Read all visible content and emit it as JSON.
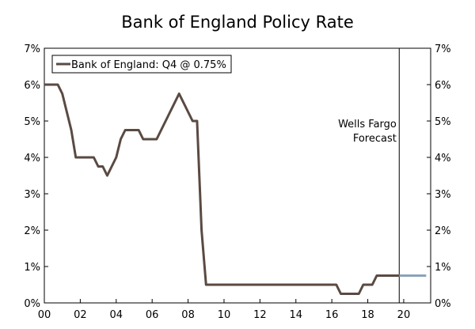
{
  "chart_data": {
    "type": "line",
    "title": "Bank of England Policy Rate",
    "xlabel": "",
    "ylabel": "",
    "xlim": [
      2000,
      2021.5
    ],
    "ylim": [
      0,
      7
    ],
    "x_ticks": [
      {
        "value": 2000,
        "label": "00"
      },
      {
        "value": 2002,
        "label": "02"
      },
      {
        "value": 2004,
        "label": "04"
      },
      {
        "value": 2006,
        "label": "06"
      },
      {
        "value": 2008,
        "label": "08"
      },
      {
        "value": 2010,
        "label": "10"
      },
      {
        "value": 2012,
        "label": "12"
      },
      {
        "value": 2014,
        "label": "14"
      },
      {
        "value": 2016,
        "label": "16"
      },
      {
        "value": 2018,
        "label": "18"
      },
      {
        "value": 2020,
        "label": "20"
      }
    ],
    "y_ticks": [
      {
        "value": 0,
        "label": "0%"
      },
      {
        "value": 1,
        "label": "1%"
      },
      {
        "value": 2,
        "label": "2%"
      },
      {
        "value": 3,
        "label": "3%"
      },
      {
        "value": 4,
        "label": "4%"
      },
      {
        "value": 5,
        "label": "5%"
      },
      {
        "value": 6,
        "label": "6%"
      },
      {
        "value": 7,
        "label": "7%"
      }
    ],
    "grid": false,
    "legend": {
      "position": "top-left",
      "entries": [
        "Bank of England: Q4 @ 0.75%"
      ]
    },
    "forecast_divider_x": 2019.75,
    "annotations": [
      {
        "text_lines": [
          "Wells Fargo",
          "Forecast"
        ],
        "x": 2019.6,
        "y": 5.0
      }
    ],
    "series": [
      {
        "name": "Bank of England: Q4 @ 0.75%",
        "color": "#5a4a42",
        "points": [
          [
            2000.0,
            6.0
          ],
          [
            2000.75,
            6.0
          ],
          [
            2001.0,
            5.75
          ],
          [
            2001.25,
            5.25
          ],
          [
            2001.5,
            4.75
          ],
          [
            2001.75,
            4.0
          ],
          [
            2002.0,
            4.0
          ],
          [
            2002.75,
            4.0
          ],
          [
            2003.0,
            3.75
          ],
          [
            2003.25,
            3.75
          ],
          [
            2003.5,
            3.5
          ],
          [
            2003.75,
            3.75
          ],
          [
            2004.0,
            4.0
          ],
          [
            2004.25,
            4.5
          ],
          [
            2004.5,
            4.75
          ],
          [
            2005.25,
            4.75
          ],
          [
            2005.5,
            4.5
          ],
          [
            2006.25,
            4.5
          ],
          [
            2006.75,
            5.0
          ],
          [
            2007.0,
            5.25
          ],
          [
            2007.5,
            5.75
          ],
          [
            2008.0,
            5.25
          ],
          [
            2008.25,
            5.0
          ],
          [
            2008.5,
            5.0
          ],
          [
            2008.75,
            2.0
          ],
          [
            2009.0,
            0.5
          ],
          [
            2016.25,
            0.5
          ],
          [
            2016.5,
            0.25
          ],
          [
            2017.5,
            0.25
          ],
          [
            2017.75,
            0.5
          ],
          [
            2018.25,
            0.5
          ],
          [
            2018.5,
            0.75
          ],
          [
            2019.75,
            0.75
          ]
        ]
      },
      {
        "name": "Forecast",
        "color": "#8aa3b8",
        "points": [
          [
            2019.75,
            0.75
          ],
          [
            2021.25,
            0.75
          ]
        ]
      }
    ]
  }
}
